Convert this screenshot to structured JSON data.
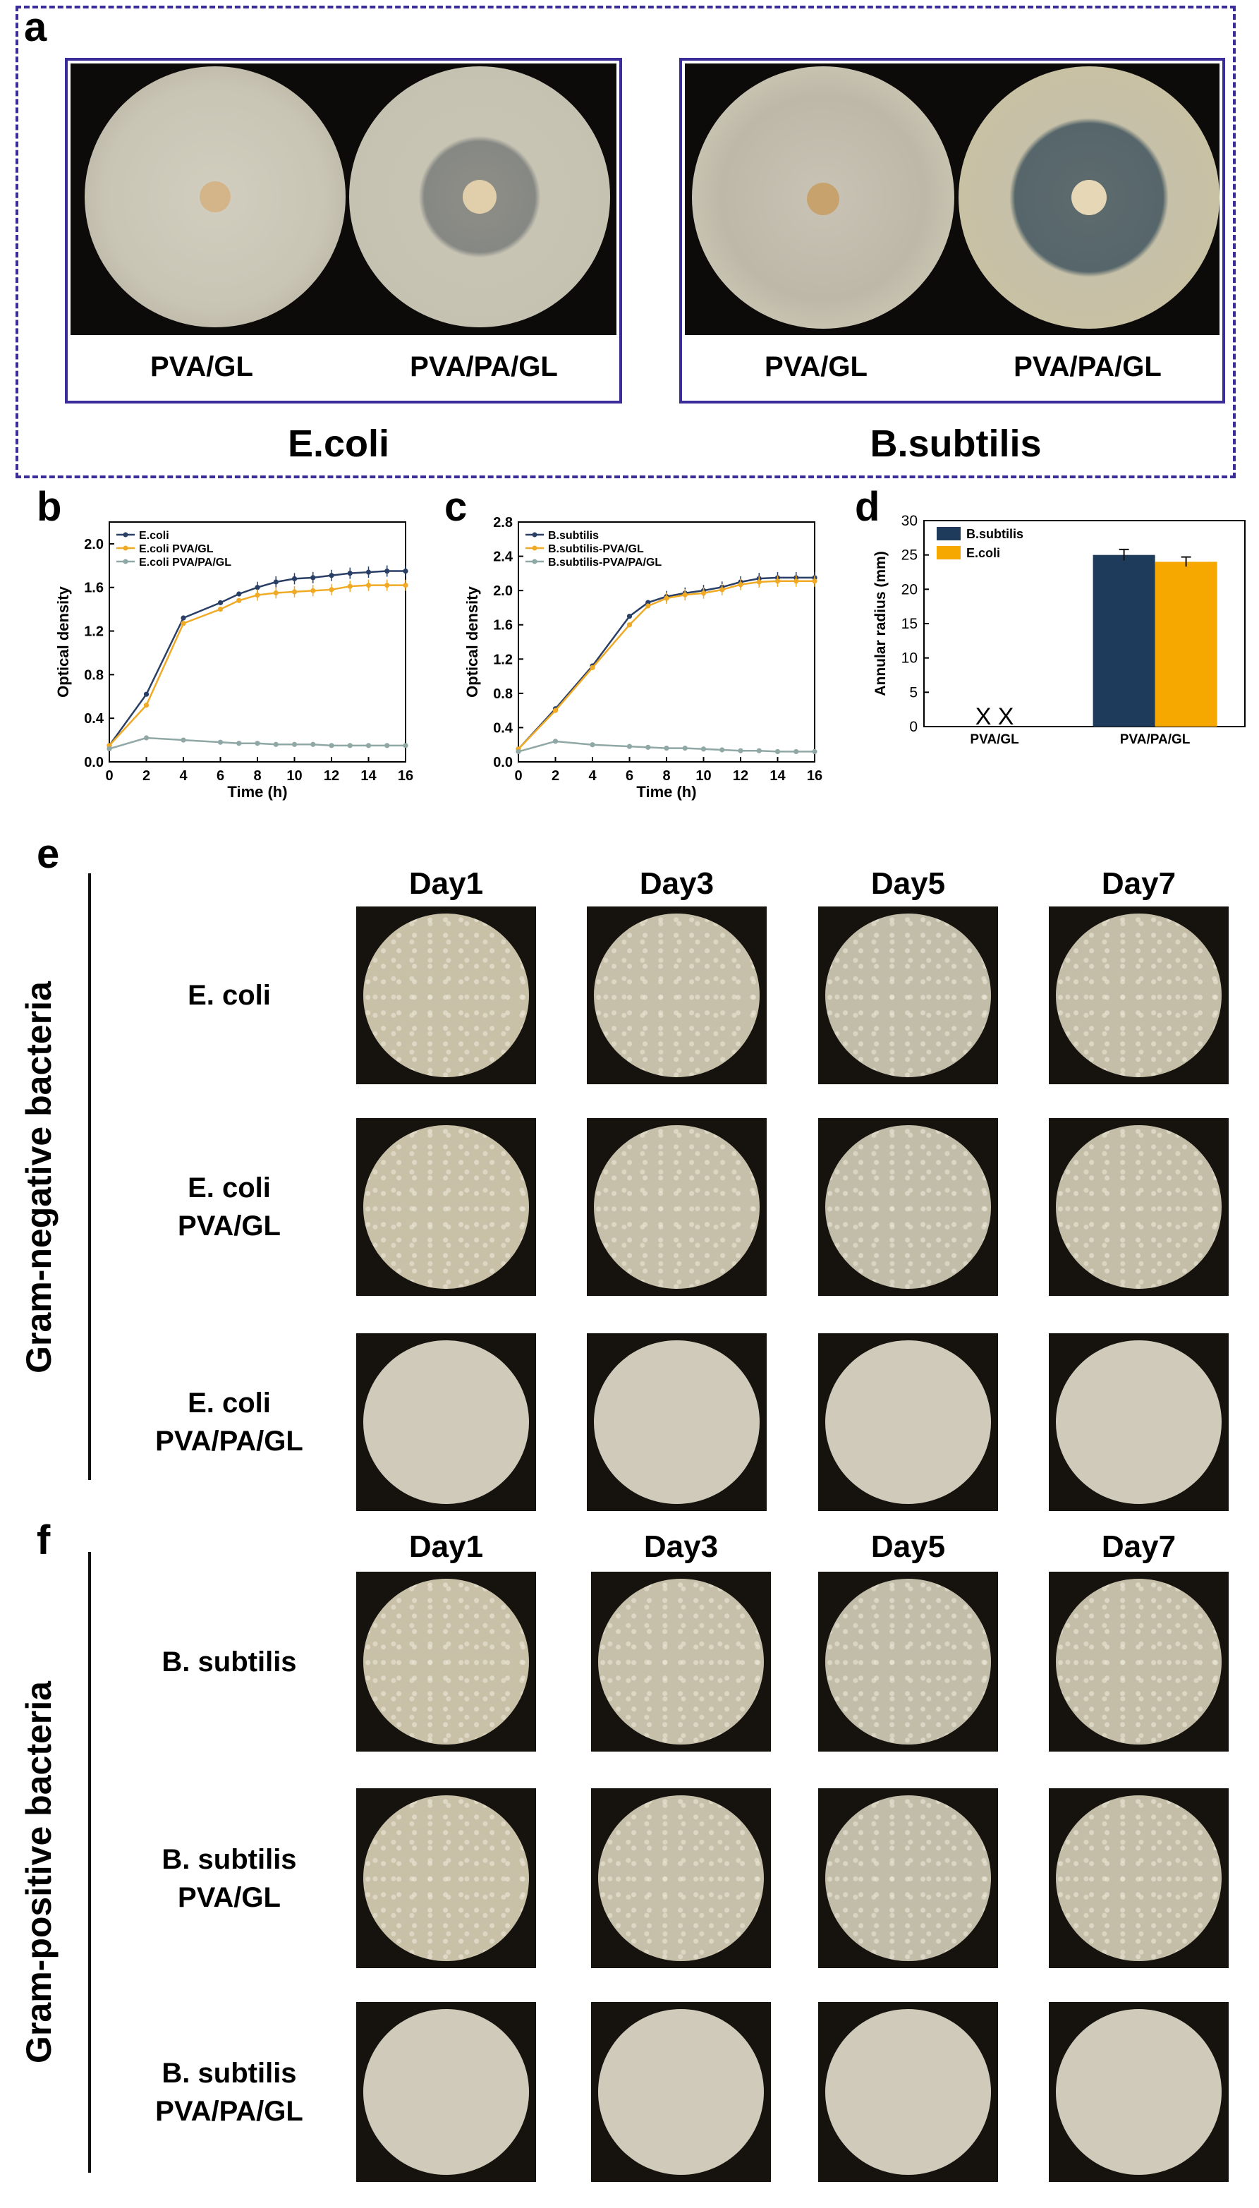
{
  "panel_labels": {
    "a": "a",
    "b": "b",
    "c": "c",
    "d": "d",
    "e": "e",
    "f": "f"
  },
  "panel_a": {
    "left_group": {
      "organism": "E.coli",
      "captions": [
        "PVA/GL",
        "PVA/PA/GL"
      ]
    },
    "right_group": {
      "organism": "B.subtilis",
      "captions": [
        "PVA/GL",
        "PVA/PA/GL"
      ]
    }
  },
  "chart_data": [
    {
      "id": "b",
      "type": "line",
      "xlabel": "Time (h)",
      "ylabel": "Optical density",
      "xlim": [
        0,
        16
      ],
      "ylim": [
        0,
        2.2
      ],
      "xticks": [
        0,
        2,
        4,
        6,
        8,
        10,
        12,
        14,
        16
      ],
      "yticks": [
        0.0,
        0.4,
        0.8,
        1.2,
        1.6,
        2.0
      ],
      "x": [
        0,
        2,
        4,
        6,
        7,
        8,
        9,
        10,
        11,
        12,
        13,
        14,
        15,
        16
      ],
      "series": [
        {
          "name": "E.coli",
          "color": "#2a3f66",
          "values": [
            0.15,
            0.62,
            1.32,
            1.46,
            1.54,
            1.6,
            1.65,
            1.68,
            1.69,
            1.71,
            1.73,
            1.74,
            1.75,
            1.75
          ]
        },
        {
          "name": "E.coli PVA/GL",
          "color": "#f0aa25",
          "values": [
            0.15,
            0.52,
            1.27,
            1.4,
            1.48,
            1.53,
            1.55,
            1.56,
            1.57,
            1.58,
            1.61,
            1.62,
            1.62,
            1.62
          ]
        },
        {
          "name": "E.coli PVA/PA/GL",
          "color": "#8fa8a5",
          "values": [
            0.12,
            0.22,
            0.2,
            0.18,
            0.17,
            0.17,
            0.16,
            0.16,
            0.16,
            0.15,
            0.15,
            0.15,
            0.15,
            0.15
          ]
        }
      ]
    },
    {
      "id": "c",
      "type": "line",
      "xlabel": "Time (h)",
      "ylabel": "Optical density",
      "xlim": [
        0,
        16
      ],
      "ylim": [
        0,
        2.8
      ],
      "xticks": [
        0,
        2,
        4,
        6,
        8,
        10,
        12,
        14,
        16
      ],
      "yticks": [
        0.0,
        0.4,
        0.8,
        1.2,
        1.6,
        2.0,
        2.4,
        2.8
      ],
      "x": [
        0,
        2,
        4,
        6,
        7,
        8,
        9,
        10,
        11,
        12,
        13,
        14,
        15,
        16
      ],
      "series": [
        {
          "name": "B.subtilis",
          "color": "#2a3f66",
          "values": [
            0.15,
            0.62,
            1.12,
            1.7,
            1.86,
            1.93,
            1.97,
            2.0,
            2.04,
            2.1,
            2.14,
            2.15,
            2.15,
            2.15
          ]
        },
        {
          "name": "B.subtilis-PVA/GL",
          "color": "#f0aa25",
          "values": [
            0.15,
            0.6,
            1.1,
            1.6,
            1.82,
            1.91,
            1.95,
            1.97,
            2.01,
            2.07,
            2.1,
            2.11,
            2.11,
            2.11
          ]
        },
        {
          "name": "B.subtilis-PVA/PA/GL",
          "color": "#8fa8a5",
          "values": [
            0.12,
            0.24,
            0.2,
            0.18,
            0.17,
            0.16,
            0.16,
            0.15,
            0.14,
            0.13,
            0.13,
            0.12,
            0.12,
            0.12
          ]
        }
      ]
    },
    {
      "id": "d",
      "type": "bar",
      "ylabel": "Annular radius (mm)",
      "ylim": [
        0,
        30
      ],
      "yticks": [
        0,
        5,
        10,
        15,
        20,
        25,
        30
      ],
      "categories": [
        "PVA/GL",
        "PVA/PA/GL"
      ],
      "absent_marker": "X X",
      "series": [
        {
          "name": "B.subtilis",
          "color": "#1f3b5c",
          "values": [
            0,
            25.0
          ],
          "errors": [
            0,
            0.8
          ]
        },
        {
          "name": "E.coli",
          "color": "#f7a800",
          "values": [
            0,
            24.0
          ],
          "errors": [
            0,
            0.7
          ]
        }
      ]
    }
  ],
  "panel_e": {
    "side_label": "Gram-negative bacteria",
    "days": [
      "Day1",
      "Day3",
      "Day5",
      "Day7"
    ],
    "rows": [
      {
        "line1": "E. coli",
        "line2": ""
      },
      {
        "line1": "E. coli",
        "line2": "PVA/GL"
      },
      {
        "line1": "E. coli",
        "line2": "PVA/PA/GL"
      }
    ]
  },
  "panel_f": {
    "side_label": "Gram-positive bacteria",
    "days": [
      "Day1",
      "Day3",
      "Day5",
      "Day7"
    ],
    "rows": [
      {
        "line1": "B. subtilis",
        "line2": ""
      },
      {
        "line1": "B. subtilis",
        "line2": "PVA/GL"
      },
      {
        "line1": "B. subtilis",
        "line2": "PVA/PA/GL"
      }
    ]
  }
}
